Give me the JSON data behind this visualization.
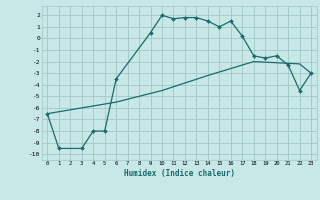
{
  "xlabel": "Humidex (Indice chaleur)",
  "bg_color": "#c8e8e8",
  "grid_color": "#a0c8c8",
  "line_color": "#1a6b6b",
  "xlim": [
    -0.5,
    23.5
  ],
  "ylim": [
    -10.5,
    2.8
  ],
  "xticks": [
    0,
    1,
    2,
    3,
    4,
    5,
    6,
    7,
    8,
    9,
    10,
    11,
    12,
    13,
    14,
    15,
    16,
    17,
    18,
    19,
    20,
    21,
    22,
    23
  ],
  "yticks": [
    -10,
    -9,
    -8,
    -7,
    -6,
    -5,
    -4,
    -3,
    -2,
    -1,
    0,
    1,
    2
  ],
  "line1_x": [
    0,
    1,
    3,
    4,
    5,
    6,
    9,
    10,
    11,
    12,
    13,
    14,
    15,
    16,
    17,
    18,
    19,
    20,
    21,
    22,
    23
  ],
  "line1_y": [
    -6.5,
    -9.5,
    -9.5,
    -8.0,
    -8.0,
    -3.5,
    0.5,
    2.0,
    1.7,
    1.8,
    1.8,
    1.5,
    1.0,
    1.5,
    0.2,
    -1.5,
    -1.7,
    -1.5,
    -2.3,
    -4.5,
    -3.0
  ],
  "line2_x": [
    0,
    6,
    10,
    14,
    18,
    22,
    23
  ],
  "line2_y": [
    -6.5,
    -5.5,
    -4.5,
    -3.2,
    -2.0,
    -2.2,
    -3.0
  ]
}
